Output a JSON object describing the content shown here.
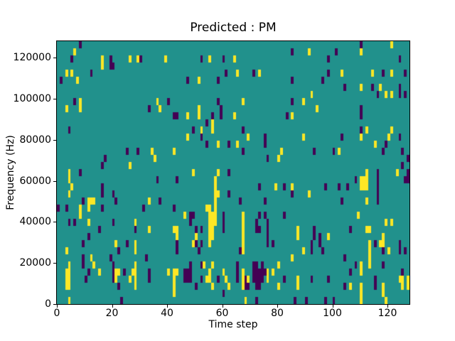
{
  "figure": {
    "title": "Predicted : PM",
    "xlabel": "Time step",
    "ylabel": "Frequency (Hz)"
  },
  "chart_data": {
    "type": "heatmap",
    "title": "Predicted : PM",
    "xlabel": "Time step",
    "ylabel": "Frequency (Hz)",
    "colormap": "viridis",
    "grid": false,
    "legend": null,
    "x_range": [
      0,
      128
    ],
    "y_range": [
      0,
      128000
    ],
    "n_cols": 128,
    "n_rows": 37,
    "row_order": "top_to_bottom",
    "x_ticks": [
      {
        "v": 0,
        "label": "0"
      },
      {
        "v": 20,
        "label": "20"
      },
      {
        "v": 40,
        "label": "40"
      },
      {
        "v": 60,
        "label": "60"
      },
      {
        "v": 80,
        "label": "80"
      },
      {
        "v": 100,
        "label": "100"
      },
      {
        "v": 120,
        "label": "120"
      }
    ],
    "y_ticks": [
      {
        "v": 0,
        "label": "0"
      },
      {
        "v": 20000,
        "label": "20000"
      },
      {
        "v": 40000,
        "label": "40000"
      },
      {
        "v": 60000,
        "label": "60000"
      },
      {
        "v": 80000,
        "label": "80000"
      },
      {
        "v": 100000,
        "label": "100000"
      },
      {
        "v": 120000,
        "label": "120000"
      }
    ],
    "colors": {
      "mid_background": "#21918c",
      "high": "#fde725",
      "low": "#440154",
      "axes_text": "#000000",
      "figure_background": "#ffffff"
    },
    "cells_low": [
      [
        8,
        0
      ],
      [
        110,
        0
      ],
      [
        85,
        1
      ],
      [
        101,
        1
      ],
      [
        5,
        2
      ],
      [
        19,
        2
      ],
      [
        30,
        2
      ],
      [
        52,
        2
      ],
      [
        60,
        2
      ],
      [
        98,
        2
      ],
      [
        124,
        2
      ],
      [
        19,
        3
      ],
      [
        20,
        3
      ],
      [
        12,
        4
      ],
      [
        61,
        4
      ],
      [
        71,
        4
      ],
      [
        98,
        4
      ],
      [
        118,
        4
      ],
      [
        126,
        4
      ],
      [
        1,
        5
      ],
      [
        47,
        5
      ],
      [
        58,
        5
      ],
      [
        85,
        5
      ],
      [
        96,
        5
      ],
      [
        104,
        6
      ],
      [
        114,
        6
      ],
      [
        124,
        6
      ],
      [
        116,
        7
      ],
      [
        124,
        7
      ],
      [
        126,
        7
      ],
      [
        6,
        8
      ],
      [
        40,
        8
      ],
      [
        58,
        8
      ],
      [
        85,
        8
      ],
      [
        33,
        9
      ],
      [
        59,
        9
      ],
      [
        110,
        9
      ],
      [
        42,
        10
      ],
      [
        43,
        10
      ],
      [
        56,
        10
      ],
      [
        59,
        10
      ],
      [
        83,
        10
      ],
      [
        110,
        10
      ],
      [
        54,
        11
      ],
      [
        4,
        12
      ],
      [
        49,
        12
      ],
      [
        67,
        12
      ],
      [
        110,
        12
      ],
      [
        52,
        13
      ],
      [
        75,
        13
      ],
      [
        103,
        13
      ],
      [
        124,
        13
      ],
      [
        54,
        14
      ],
      [
        62,
        14
      ],
      [
        75,
        14
      ],
      [
        119,
        14
      ],
      [
        25,
        15
      ],
      [
        29,
        15
      ],
      [
        67,
        15
      ],
      [
        93,
        15
      ],
      [
        100,
        15
      ],
      [
        118,
        15
      ],
      [
        125,
        15
      ],
      [
        17,
        16
      ],
      [
        76,
        16
      ],
      [
        127,
        16
      ],
      [
        16,
        17
      ],
      [
        125,
        17
      ],
      [
        8,
        18
      ],
      [
        62,
        18
      ],
      [
        116,
        18
      ],
      [
        127,
        18
      ],
      [
        36,
        19
      ],
      [
        43,
        19
      ],
      [
        108,
        19
      ],
      [
        116,
        19
      ],
      [
        126,
        19
      ],
      [
        127,
        19
      ],
      [
        16,
        20
      ],
      [
        73,
        20
      ],
      [
        82,
        20
      ],
      [
        97,
        20
      ],
      [
        102,
        20
      ],
      [
        105,
        20
      ],
      [
        116,
        20
      ],
      [
        16,
        21
      ],
      [
        20,
        21
      ],
      [
        62,
        21
      ],
      [
        85,
        21
      ],
      [
        116,
        21
      ],
      [
        9,
        22
      ],
      [
        21,
        22
      ],
      [
        37,
        22
      ],
      [
        66,
        22
      ],
      [
        75,
        22
      ],
      [
        103,
        22
      ],
      [
        116,
        22
      ],
      [
        0,
        23
      ],
      [
        3,
        23
      ],
      [
        16,
        23
      ],
      [
        31,
        23
      ],
      [
        42,
        23
      ],
      [
        48,
        24
      ],
      [
        49,
        24
      ],
      [
        60,
        24
      ],
      [
        73,
        24
      ],
      [
        75,
        24
      ],
      [
        82,
        24
      ],
      [
        4,
        25
      ],
      [
        6,
        25
      ],
      [
        20,
        25
      ],
      [
        48,
        25
      ],
      [
        60,
        25
      ],
      [
        72,
        25
      ],
      [
        76,
        25
      ],
      [
        15,
        26
      ],
      [
        28,
        26
      ],
      [
        50,
        26
      ],
      [
        52,
        26
      ],
      [
        60,
        26
      ],
      [
        72,
        26
      ],
      [
        73,
        26
      ],
      [
        76,
        26
      ],
      [
        93,
        26
      ],
      [
        106,
        26
      ],
      [
        11,
        27
      ],
      [
        76,
        27
      ],
      [
        93,
        27
      ],
      [
        95,
        27
      ],
      [
        9,
        28
      ],
      [
        25,
        28
      ],
      [
        43,
        28
      ],
      [
        50,
        28
      ],
      [
        52,
        28
      ],
      [
        76,
        28
      ],
      [
        78,
        28
      ],
      [
        92,
        28
      ],
      [
        95,
        28
      ],
      [
        115,
        28
      ],
      [
        124,
        28
      ],
      [
        22,
        29
      ],
      [
        43,
        29
      ],
      [
        51,
        29
      ],
      [
        66,
        29
      ],
      [
        92,
        29
      ],
      [
        96,
        29
      ],
      [
        118,
        29
      ],
      [
        124,
        29
      ],
      [
        126,
        29
      ],
      [
        9,
        30
      ],
      [
        19,
        30
      ],
      [
        32,
        30
      ],
      [
        104,
        30
      ],
      [
        9,
        31
      ],
      [
        20,
        31
      ],
      [
        48,
        31
      ],
      [
        52,
        31
      ],
      [
        65,
        31
      ],
      [
        71,
        31
      ],
      [
        72,
        31
      ],
      [
        74,
        31
      ],
      [
        108,
        31
      ],
      [
        118,
        31
      ],
      [
        11,
        32
      ],
      [
        20,
        32
      ],
      [
        24,
        32
      ],
      [
        33,
        32
      ],
      [
        46,
        32
      ],
      [
        47,
        32
      ],
      [
        48,
        32
      ],
      [
        65,
        32
      ],
      [
        71,
        32
      ],
      [
        72,
        32
      ],
      [
        73,
        32
      ],
      [
        74,
        32
      ],
      [
        75,
        32
      ],
      [
        106,
        32
      ],
      [
        125,
        32
      ],
      [
        10,
        33
      ],
      [
        20,
        33
      ],
      [
        33,
        33
      ],
      [
        46,
        33
      ],
      [
        47,
        33
      ],
      [
        48,
        33
      ],
      [
        52,
        33
      ],
      [
        58,
        33
      ],
      [
        65,
        33
      ],
      [
        68,
        33
      ],
      [
        71,
        33
      ],
      [
        72,
        33
      ],
      [
        73,
        33
      ],
      [
        74,
        33
      ],
      [
        82,
        33
      ],
      [
        92,
        33
      ],
      [
        98,
        33
      ],
      [
        115,
        33
      ],
      [
        22,
        34
      ],
      [
        50,
        34
      ],
      [
        68,
        34
      ],
      [
        69,
        34
      ],
      [
        72,
        34
      ],
      [
        73,
        34
      ],
      [
        104,
        34
      ],
      [
        115,
        34
      ],
      [
        60,
        35
      ],
      [
        23,
        36
      ],
      [
        72,
        36
      ],
      [
        86,
        36
      ],
      [
        90,
        36
      ],
      [
        97,
        36
      ],
      [
        100,
        36
      ]
    ],
    "cells_high": [
      [
        121,
        0
      ],
      [
        6,
        1
      ],
      [
        91,
        1
      ],
      [
        110,
        1
      ],
      [
        16,
        2
      ],
      [
        26,
        2
      ],
      [
        29,
        2
      ],
      [
        39,
        2
      ],
      [
        55,
        2
      ],
      [
        64,
        2
      ],
      [
        16,
        3
      ],
      [
        3,
        4
      ],
      [
        5,
        4
      ],
      [
        65,
        4
      ],
      [
        73,
        4
      ],
      [
        103,
        4
      ],
      [
        114,
        4
      ],
      [
        121,
        4
      ],
      [
        7,
        5
      ],
      [
        51,
        5
      ],
      [
        110,
        6
      ],
      [
        117,
        6
      ],
      [
        92,
        7
      ],
      [
        119,
        7
      ],
      [
        121,
        7
      ],
      [
        8,
        8
      ],
      [
        36,
        8
      ],
      [
        67,
        8
      ],
      [
        89,
        8
      ],
      [
        3,
        9
      ],
      [
        8,
        9
      ],
      [
        37,
        9
      ],
      [
        51,
        9
      ],
      [
        94,
        9
      ],
      [
        47,
        10
      ],
      [
        51,
        10
      ],
      [
        64,
        10
      ],
      [
        85,
        10
      ],
      [
        56,
        11
      ],
      [
        52,
        12
      ],
      [
        56,
        12
      ],
      [
        112,
        12
      ],
      [
        121,
        12
      ],
      [
        47,
        13
      ],
      [
        69,
        13
      ],
      [
        89,
        13
      ],
      [
        110,
        13
      ],
      [
        120,
        13
      ],
      [
        58,
        14
      ],
      [
        65,
        14
      ],
      [
        115,
        14
      ],
      [
        34,
        15
      ],
      [
        42,
        15
      ],
      [
        81,
        15
      ],
      [
        102,
        15
      ],
      [
        35,
        16
      ],
      [
        80,
        16
      ],
      [
        26,
        17
      ],
      [
        4,
        18
      ],
      [
        49,
        18
      ],
      [
        58,
        18
      ],
      [
        112,
        18
      ],
      [
        123,
        18
      ],
      [
        4,
        19
      ],
      [
        57,
        19
      ],
      [
        110,
        19
      ],
      [
        111,
        19
      ],
      [
        112,
        19
      ],
      [
        5,
        20
      ],
      [
        57,
        20
      ],
      [
        79,
        20
      ],
      [
        85,
        20
      ],
      [
        110,
        20
      ],
      [
        111,
        20
      ],
      [
        112,
        20
      ],
      [
        4,
        21
      ],
      [
        57,
        21
      ],
      [
        58,
        21
      ],
      [
        91,
        21
      ],
      [
        11,
        22
      ],
      [
        12,
        22
      ],
      [
        13,
        22
      ],
      [
        33,
        22
      ],
      [
        57,
        22
      ],
      [
        112,
        22
      ],
      [
        8,
        23
      ],
      [
        11,
        23
      ],
      [
        54,
        23
      ],
      [
        55,
        23
      ],
      [
        57,
        23
      ],
      [
        8,
        24
      ],
      [
        46,
        24
      ],
      [
        55,
        24
      ],
      [
        56,
        24
      ],
      [
        57,
        24
      ],
      [
        67,
        24
      ],
      [
        109,
        24
      ],
      [
        11,
        25
      ],
      [
        28,
        25
      ],
      [
        55,
        25
      ],
      [
        56,
        25
      ],
      [
        57,
        25
      ],
      [
        67,
        25
      ],
      [
        119,
        25
      ],
      [
        121,
        25
      ],
      [
        33,
        26
      ],
      [
        42,
        26
      ],
      [
        43,
        26
      ],
      [
        55,
        26
      ],
      [
        56,
        26
      ],
      [
        67,
        26
      ],
      [
        87,
        26
      ],
      [
        112,
        26
      ],
      [
        113,
        26
      ],
      [
        43,
        27
      ],
      [
        50,
        27
      ],
      [
        55,
        27
      ],
      [
        56,
        27
      ],
      [
        67,
        27
      ],
      [
        87,
        27
      ],
      [
        98,
        27
      ],
      [
        118,
        27
      ],
      [
        21,
        28
      ],
      [
        28,
        28
      ],
      [
        49,
        28
      ],
      [
        55,
        28
      ],
      [
        67,
        28
      ],
      [
        113,
        28
      ],
      [
        117,
        28
      ],
      [
        118,
        28
      ],
      [
        3,
        29
      ],
      [
        28,
        29
      ],
      [
        67,
        29
      ],
      [
        89,
        29
      ],
      [
        113,
        29
      ],
      [
        120,
        29
      ],
      [
        12,
        30
      ],
      [
        85,
        30
      ],
      [
        113,
        30
      ],
      [
        4,
        31
      ],
      [
        13,
        31
      ],
      [
        28,
        31
      ],
      [
        53,
        31
      ],
      [
        56,
        31
      ],
      [
        80,
        31
      ],
      [
        110,
        31
      ],
      [
        113,
        31
      ],
      [
        3,
        32
      ],
      [
        4,
        32
      ],
      [
        15,
        32
      ],
      [
        21,
        32
      ],
      [
        22,
        32
      ],
      [
        27,
        32
      ],
      [
        28,
        32
      ],
      [
        40,
        32
      ],
      [
        42,
        32
      ],
      [
        43,
        32
      ],
      [
        55,
        32
      ],
      [
        60,
        32
      ],
      [
        67,
        32
      ],
      [
        76,
        32
      ],
      [
        78,
        32
      ],
      [
        110,
        32
      ],
      [
        3,
        33
      ],
      [
        4,
        33
      ],
      [
        21,
        33
      ],
      [
        26,
        33
      ],
      [
        28,
        33
      ],
      [
        42,
        33
      ],
      [
        54,
        33
      ],
      [
        55,
        33
      ],
      [
        61,
        33
      ],
      [
        67,
        33
      ],
      [
        69,
        33
      ],
      [
        76,
        33
      ],
      [
        87,
        33
      ],
      [
        124,
        33
      ],
      [
        125,
        33
      ],
      [
        127,
        33
      ],
      [
        3,
        34
      ],
      [
        4,
        34
      ],
      [
        28,
        34
      ],
      [
        42,
        34
      ],
      [
        56,
        34
      ],
      [
        62,
        34
      ],
      [
        67,
        34
      ],
      [
        80,
        34
      ],
      [
        87,
        34
      ],
      [
        106,
        34
      ],
      [
        110,
        34
      ],
      [
        118,
        34
      ],
      [
        125,
        34
      ],
      [
        127,
        34
      ],
      [
        42,
        35
      ],
      [
        110,
        35
      ],
      [
        118,
        35
      ],
      [
        4,
        36
      ],
      [
        68,
        36
      ],
      [
        110,
        36
      ],
      [
        119,
        36
      ]
    ]
  }
}
